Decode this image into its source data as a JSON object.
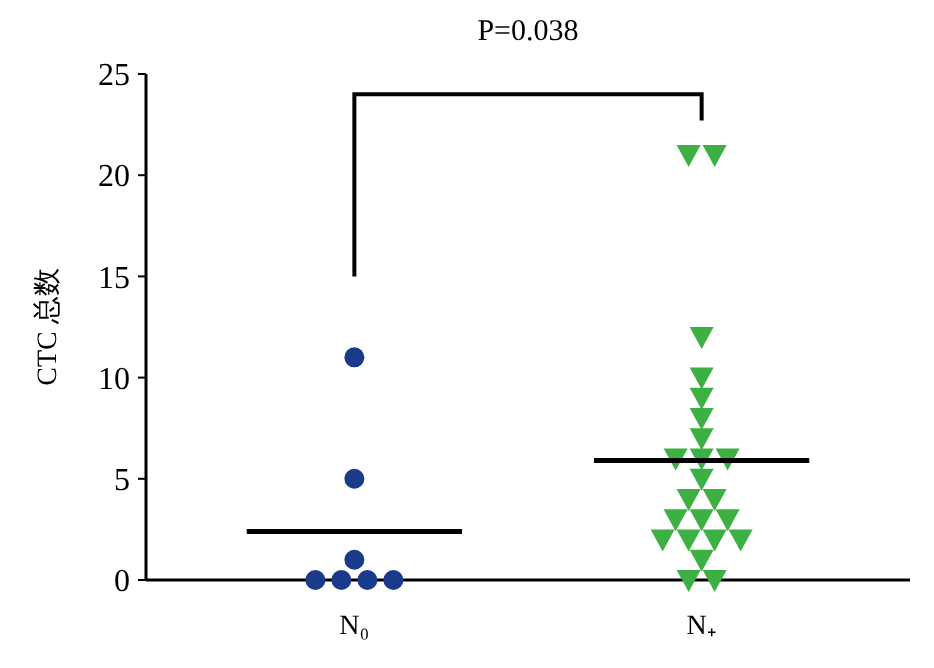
{
  "chart_data": {
    "type": "scatter",
    "annotations": [
      "P=0.038"
    ],
    "ylabel": "CTC 总数",
    "categories": [
      "N₀",
      "N₊"
    ],
    "ylim": [
      0,
      25
    ],
    "yticks": [
      0,
      5,
      10,
      15,
      20,
      25
    ],
    "series": [
      {
        "marker": "circle",
        "color": "#1a3a8c",
        "x": [
          "N₀",
          "N₀",
          "N₀",
          "N₀",
          "N₀",
          "N₀",
          "N₀"
        ],
        "values": [
          11,
          5,
          1,
          0,
          0,
          0,
          0
        ]
      },
      {
        "marker": "triangle",
        "color": "#3cb043",
        "x": [
          "N₊",
          "N₊",
          "N₊",
          "N₊",
          "N₊",
          "N₊",
          "N₊",
          "N₊",
          "N₊",
          "N₊",
          "N₊",
          "N₊",
          "N₊",
          "N₊",
          "N₊",
          "N₊",
          "N₊",
          "N₊",
          "N₊",
          "N₊",
          "N₊",
          "N₊",
          "N₊"
        ],
        "values": [
          21,
          21,
          12,
          10,
          9,
          8,
          7,
          6,
          6,
          6,
          5,
          4,
          4,
          3,
          3,
          3,
          2,
          2,
          2,
          2,
          1,
          0,
          0
        ]
      },
      {
        "type": "box",
        "color": "#000000",
        "boxes": [
          {
            "low": 2.4,
            "q1": 2.4,
            "median": 2.4,
            "q3": 2.4,
            "high": 2.4
          },
          {
            "low": 5.9,
            "q1": 5.9,
            "median": 5.9,
            "q3": 5.9,
            "high": 5.9
          }
        ]
      }
    ]
  }
}
